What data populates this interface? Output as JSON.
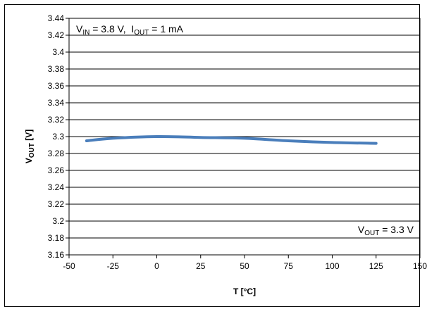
{
  "chart_data": {
    "type": "line",
    "xlabel": "T [°C]",
    "ylabel": {
      "main": "V",
      "sub": "OUT",
      "unit": " [V]"
    },
    "xlim": [
      -50,
      150
    ],
    "ylim": [
      3.16,
      3.44
    ],
    "xticks": [
      "-50",
      "-25",
      "0",
      "25",
      "50",
      "75",
      "100",
      "125",
      "150"
    ],
    "yticks": [
      "3.16",
      "3.18",
      "3.2",
      "3.22",
      "3.24",
      "3.26",
      "3.28",
      "3.3",
      "3.32",
      "3.34",
      "3.36",
      "3.38",
      "3.4",
      "3.42",
      "3.44"
    ],
    "grid": {
      "horizontal": true,
      "vertical": false
    },
    "series": [
      {
        "color": "#4a7ebb",
        "x": [
          -40,
          -25,
          0,
          25,
          50,
          75,
          100,
          125
        ],
        "y": [
          3.295,
          3.298,
          3.3,
          3.299,
          3.298,
          3.295,
          3.293,
          3.292
        ]
      }
    ],
    "annotations": {
      "conditions": {
        "v_main": "V",
        "v_sub": "IN",
        "v_value": " = 3.8 V,  ",
        "i_main": "I",
        "i_sub": "OUT",
        "i_value": " = 1 mA"
      },
      "nominal": {
        "main": "V",
        "sub": "OUT",
        "value": " = 3.3 V"
      }
    }
  }
}
